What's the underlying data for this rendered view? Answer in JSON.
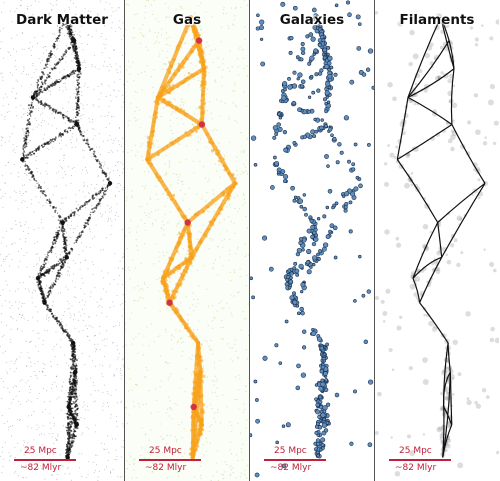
{
  "panels": [
    {
      "title": "Dark Matter",
      "scale_top": "25 Mpc",
      "scale_bottom": "~82 Mlyr"
    },
    {
      "title": "Gas",
      "scale_top": "25 Mpc",
      "scale_bottom": "~82 Mlyr"
    },
    {
      "title": "Galaxies",
      "scale_top": "25 Mpc",
      "scale_bottom": "~82 Mlyr"
    },
    {
      "title": "Filaments",
      "scale_top": "25 Mpc",
      "scale_bottom": "~82 Mlyr"
    }
  ],
  "colors": {
    "dark_matter": "#111111",
    "gas_main": "#f7a21b",
    "gas_faint": "#b9d98a",
    "gas_halo": "#c81e4a",
    "galaxies_fill": "#5f8fc0",
    "galaxies_edge": "#1c2f4a",
    "filaments_line": "#111111",
    "filaments_points": "#8a8f96",
    "scale_bar": "#c0203a"
  }
}
